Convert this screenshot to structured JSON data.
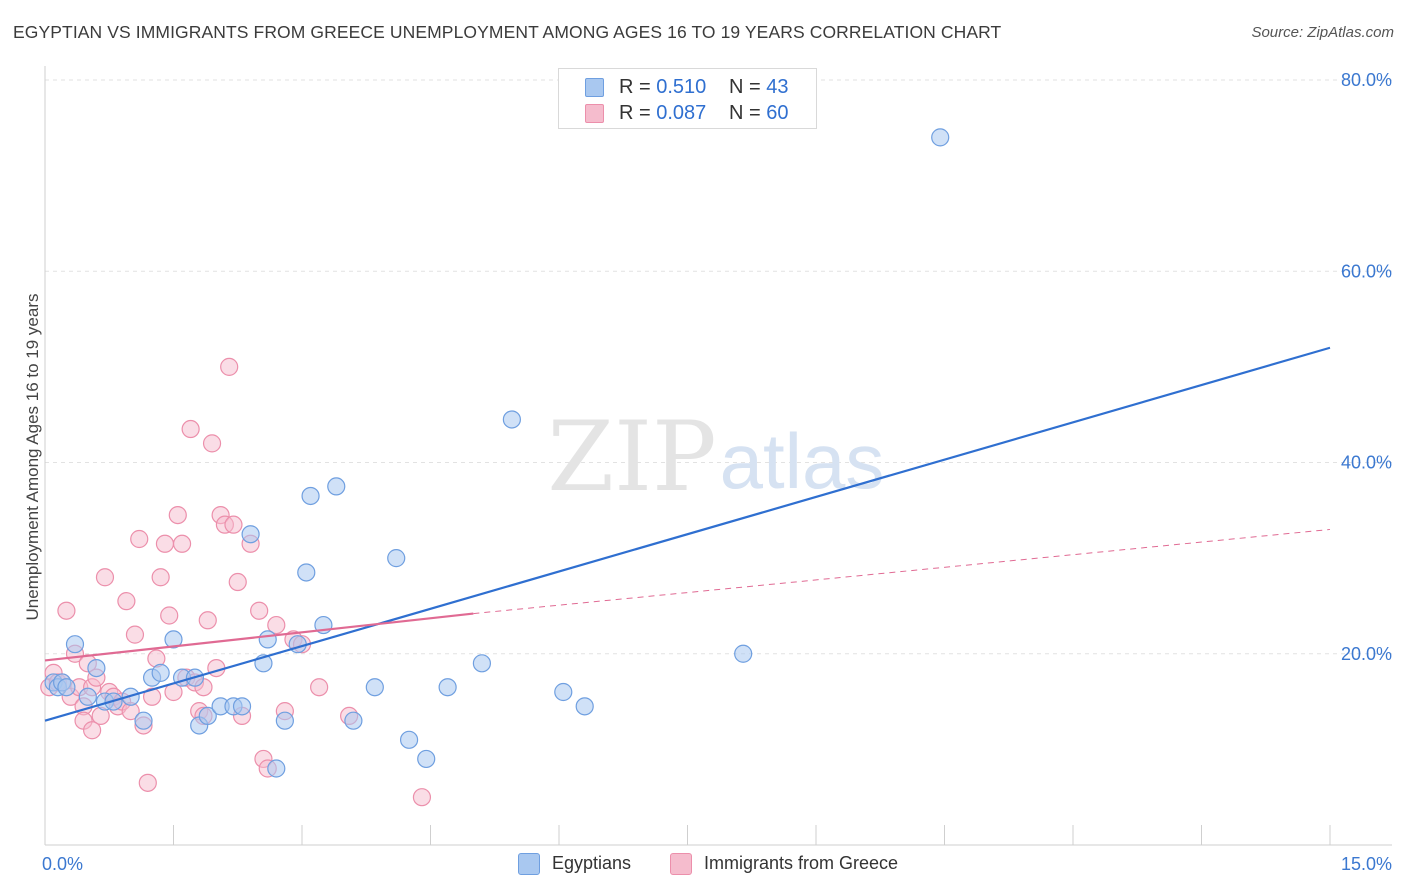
{
  "title": "EGYPTIAN VS IMMIGRANTS FROM GREECE UNEMPLOYMENT AMONG AGES 16 TO 19 YEARS CORRELATION CHART",
  "source": "Source: ZipAtlas.com",
  "watermark": {
    "zip": "ZIP",
    "atlas": "atlas"
  },
  "legend_top": [
    {
      "r_label": "R =",
      "r_value": "0.510",
      "n_label": "N =",
      "n_value": "43"
    },
    {
      "r_label": "R =",
      "r_value": "0.087",
      "n_label": "N =",
      "n_value": "60"
    }
  ],
  "legend_bottom": [
    {
      "label": "Egyptians"
    },
    {
      "label": "Immigrants from Greece"
    }
  ],
  "colors": {
    "blue_fill": "#a9c8f0",
    "blue_stroke": "#6f9fe0",
    "blue_line": "#2f6fd0",
    "pink_fill": "#f5bccd",
    "pink_stroke": "#ec8fab",
    "pink_line": "#e06a93",
    "axis_text_blue": "#3b78d0",
    "grid": "#e2e2e2"
  },
  "chart_data": {
    "type": "scatter",
    "title": "EGYPTIAN VS IMMIGRANTS FROM GREECE UNEMPLOYMENT AMONG AGES 16 TO 19 YEARS CORRELATION CHART",
    "xlabel": "",
    "ylabel": "Unemployment Among Ages 16 to 19 years",
    "xlim": [
      0,
      15
    ],
    "ylim": [
      0,
      80
    ],
    "x_tick_labels": [
      {
        "value": 0,
        "label": "0.0%"
      },
      {
        "value": 15,
        "label": "15.0%"
      }
    ],
    "y_tick_labels": [
      {
        "value": 20,
        "label": "20.0%"
      },
      {
        "value": 40,
        "label": "40.0%"
      },
      {
        "value": 60,
        "label": "60.0%"
      },
      {
        "value": 80,
        "label": "80.0%"
      }
    ],
    "grid": true,
    "series": [
      {
        "name": "Egyptians",
        "color": "blue",
        "points": [
          [
            0.1,
            17.0
          ],
          [
            0.15,
            16.5
          ],
          [
            0.2,
            17.0
          ],
          [
            0.25,
            16.5
          ],
          [
            0.35,
            21.0
          ],
          [
            0.5,
            15.5
          ],
          [
            0.6,
            18.5
          ],
          [
            0.7,
            15.0
          ],
          [
            0.8,
            15.0
          ],
          [
            1.0,
            15.5
          ],
          [
            1.15,
            13.0
          ],
          [
            1.25,
            17.5
          ],
          [
            1.35,
            18.0
          ],
          [
            1.5,
            21.5
          ],
          [
            1.6,
            17.5
          ],
          [
            1.75,
            17.5
          ],
          [
            1.8,
            12.5
          ],
          [
            1.9,
            13.5
          ],
          [
            2.05,
            14.5
          ],
          [
            2.2,
            14.5
          ],
          [
            2.3,
            14.5
          ],
          [
            2.4,
            32.5
          ],
          [
            2.55,
            19.0
          ],
          [
            2.6,
            21.5
          ],
          [
            2.7,
            8.0
          ],
          [
            2.8,
            13.0
          ],
          [
            2.95,
            21.0
          ],
          [
            3.05,
            28.5
          ],
          [
            3.1,
            36.5
          ],
          [
            3.25,
            23.0
          ],
          [
            3.4,
            37.5
          ],
          [
            3.6,
            13.0
          ],
          [
            3.85,
            16.5
          ],
          [
            4.1,
            30.0
          ],
          [
            4.25,
            11.0
          ],
          [
            4.45,
            9.0
          ],
          [
            4.7,
            16.5
          ],
          [
            5.1,
            19.0
          ],
          [
            5.45,
            44.5
          ],
          [
            6.05,
            16.0
          ],
          [
            6.3,
            14.5
          ],
          [
            8.15,
            20.0
          ],
          [
            10.45,
            74.0
          ]
        ],
        "trend": {
          "x": [
            0,
            15
          ],
          "y": [
            13.0,
            52.0
          ]
        }
      },
      {
        "name": "Immigrants from Greece",
        "color": "pink",
        "points": [
          [
            0.05,
            16.5
          ],
          [
            0.1,
            18.0
          ],
          [
            0.15,
            17.0
          ],
          [
            0.2,
            17.0
          ],
          [
            0.25,
            24.5
          ],
          [
            0.3,
            15.5
          ],
          [
            0.35,
            20.0
          ],
          [
            0.4,
            16.5
          ],
          [
            0.45,
            14.5
          ],
          [
            0.5,
            19.0
          ],
          [
            0.55,
            16.5
          ],
          [
            0.6,
            17.5
          ],
          [
            0.65,
            13.5
          ],
          [
            0.7,
            28.0
          ],
          [
            0.75,
            16.0
          ],
          [
            0.8,
            15.5
          ],
          [
            0.85,
            14.5
          ],
          [
            0.9,
            15.0
          ],
          [
            0.95,
            25.5
          ],
          [
            1.0,
            14.0
          ],
          [
            1.05,
            22.0
          ],
          [
            1.1,
            32.0
          ],
          [
            1.15,
            12.5
          ],
          [
            1.2,
            6.5
          ],
          [
            1.25,
            15.5
          ],
          [
            1.3,
            19.5
          ],
          [
            1.35,
            28.0
          ],
          [
            1.4,
            31.5
          ],
          [
            1.45,
            24.0
          ],
          [
            1.5,
            16.0
          ],
          [
            1.55,
            34.5
          ],
          [
            1.6,
            31.5
          ],
          [
            1.65,
            17.5
          ],
          [
            1.7,
            43.5
          ],
          [
            1.75,
            17.0
          ],
          [
            1.8,
            14.0
          ],
          [
            1.85,
            13.5
          ],
          [
            1.9,
            23.5
          ],
          [
            1.95,
            42.0
          ],
          [
            2.0,
            18.5
          ],
          [
            2.05,
            34.5
          ],
          [
            2.1,
            33.5
          ],
          [
            2.15,
            50.0
          ],
          [
            2.2,
            33.5
          ],
          [
            2.25,
            27.5
          ],
          [
            2.4,
            31.5
          ],
          [
            2.5,
            24.5
          ],
          [
            2.55,
            9.0
          ],
          [
            2.6,
            8.0
          ],
          [
            2.7,
            23.0
          ],
          [
            2.8,
            14.0
          ],
          [
            2.9,
            21.5
          ],
          [
            3.0,
            21.0
          ],
          [
            3.2,
            16.5
          ],
          [
            3.55,
            13.5
          ],
          [
            4.4,
            5.0
          ],
          [
            0.45,
            13.0
          ],
          [
            0.55,
            12.0
          ],
          [
            1.85,
            16.5
          ],
          [
            2.3,
            13.5
          ]
        ],
        "trend_solid": {
          "x": [
            0,
            5.0
          ],
          "y": [
            19.3,
            24.2
          ]
        },
        "trend_dashed": {
          "x": [
            5.0,
            15
          ],
          "y": [
            24.2,
            33.0
          ]
        }
      }
    ]
  }
}
